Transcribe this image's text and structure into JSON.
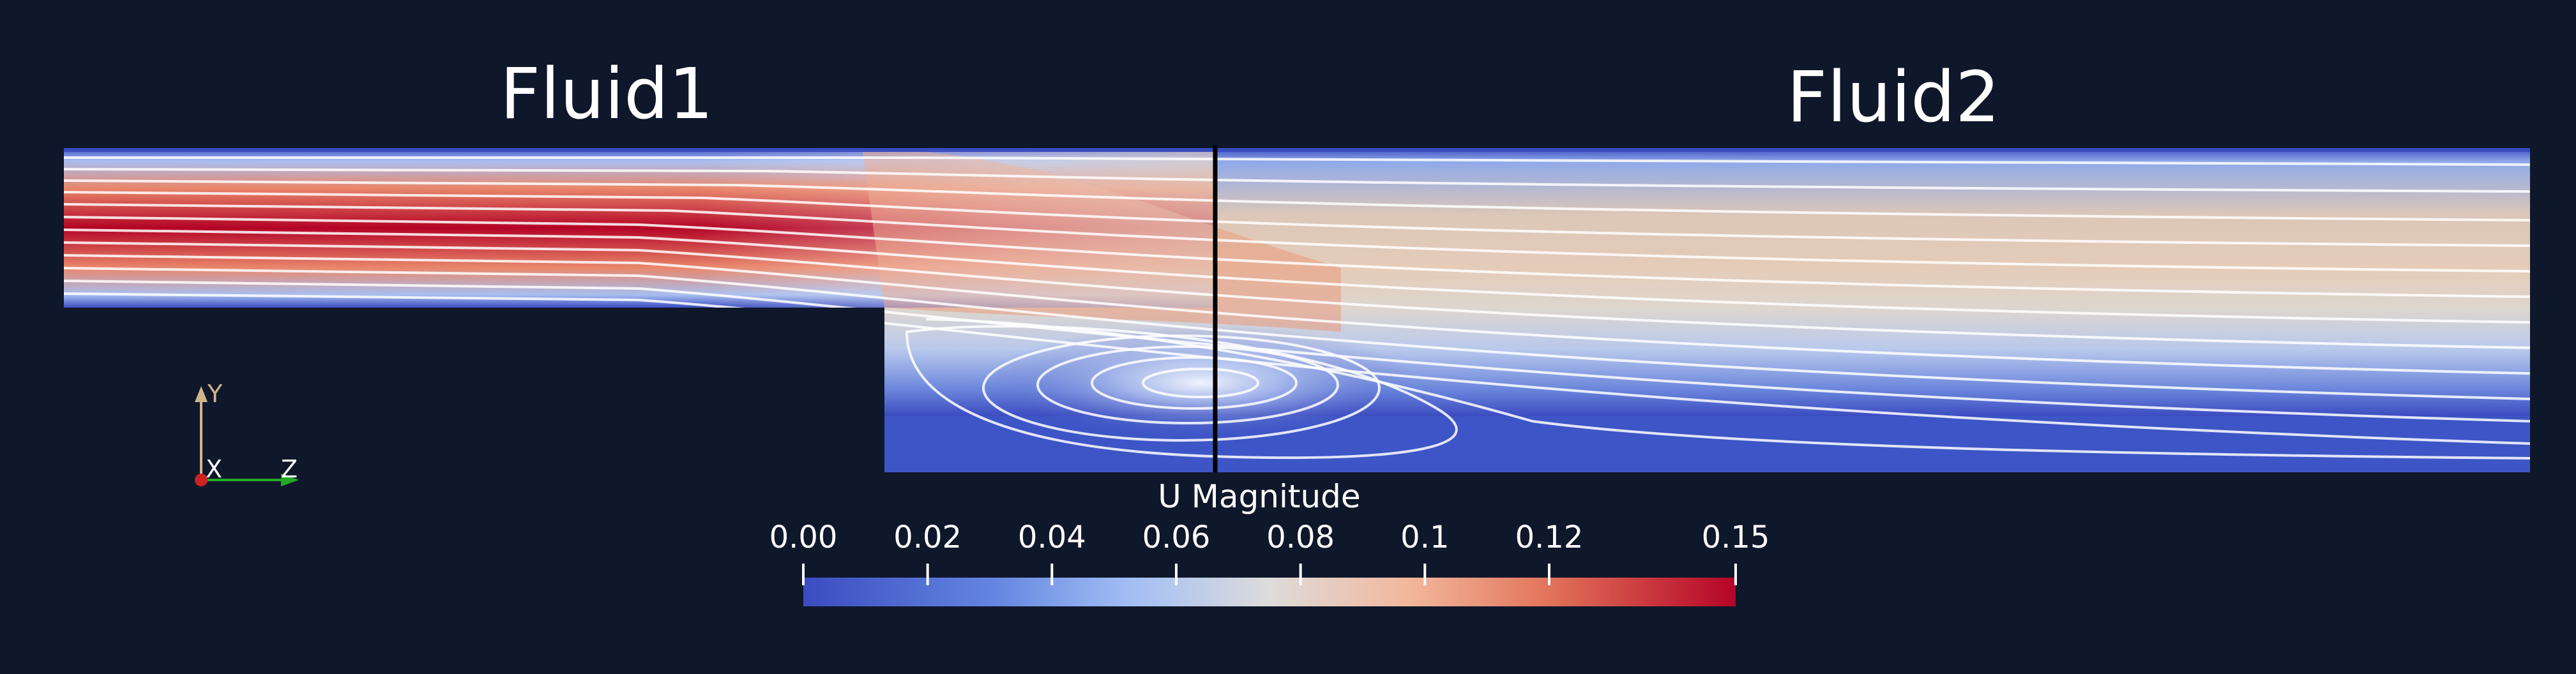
{
  "regions": [
    {
      "label": "Fluid1"
    },
    {
      "label": "Fluid2"
    }
  ],
  "field": {
    "name": "U Magnitude"
  },
  "colorbar": {
    "title": "U Magnitude",
    "min": 0.0,
    "max": 0.15,
    "ticks": [
      {
        "value": 0.0,
        "label": "0.00"
      },
      {
        "value": 0.02,
        "label": "0.02"
      },
      {
        "value": 0.04,
        "label": "0.04"
      },
      {
        "value": 0.06,
        "label": "0.06"
      },
      {
        "value": 0.08,
        "label": "0.08"
      },
      {
        "value": 0.1,
        "label": "0.1"
      },
      {
        "value": 0.12,
        "label": "0.12"
      },
      {
        "value": 0.15,
        "label": "0.15"
      }
    ],
    "colors": {
      "low": "#3b4cc0",
      "mid": "#dddcdb",
      "high": "#b40426"
    }
  },
  "axes": [
    {
      "label": "Y",
      "color": "#d2b48c"
    },
    {
      "label": "X",
      "color": "#cc2222"
    },
    {
      "label": "Z",
      "color": "#22aa22"
    }
  ],
  "colors": {
    "background": "#0f172a",
    "streamline": "#ffffff",
    "interface": "#000000"
  }
}
